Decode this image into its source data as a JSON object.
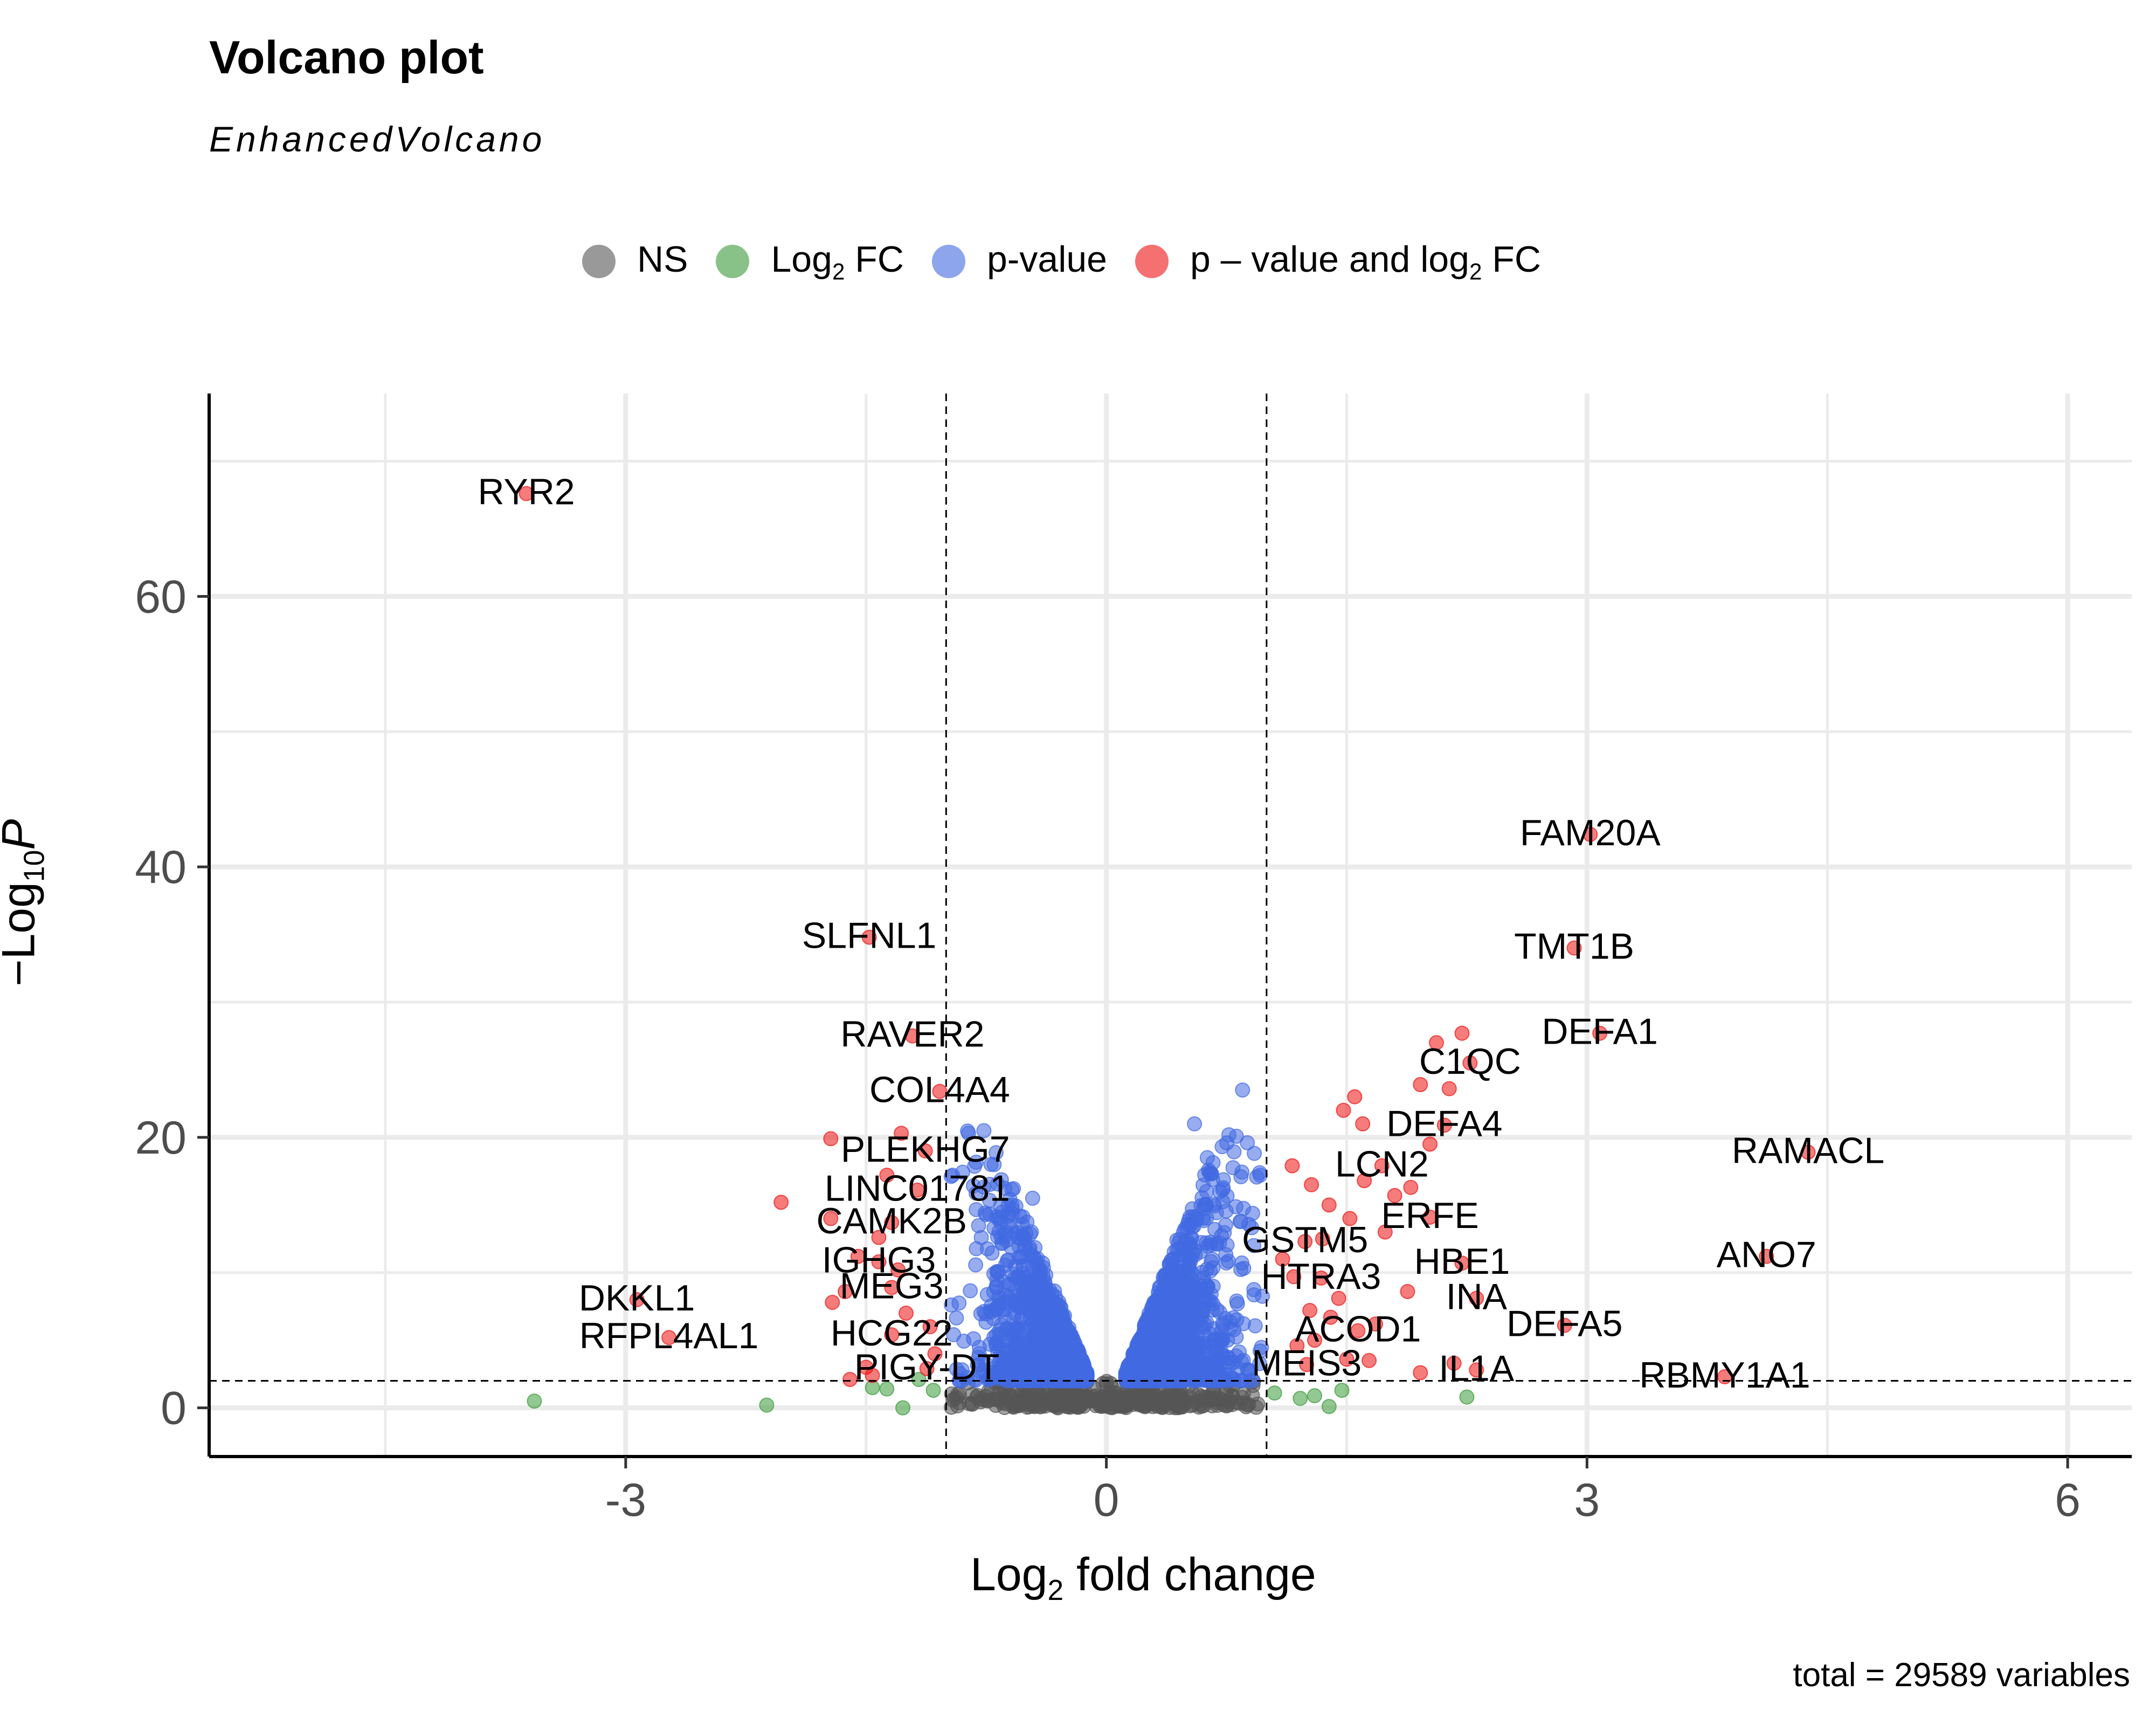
{
  "chart_data": {
    "type": "scatter",
    "title": "Volcano plot",
    "subtitle": "EnhancedVolcano",
    "caption": "total = 29589 variables",
    "xlabel": {
      "main": "Log",
      "sub": "2",
      "rest": " fold change"
    },
    "ylabel": {
      "prefix": "−Log",
      "sub": "10",
      "var": "P"
    },
    "xlim": [
      -5.6,
      6.4
    ],
    "ylim": [
      -3.6,
      75
    ],
    "xticks": [
      -3,
      0,
      3,
      6
    ],
    "yticks": [
      0,
      20,
      40,
      60
    ],
    "grid": true,
    "legend_position": "top",
    "fc_cutoff": 1,
    "p_cutoff_log10": 2,
    "legend": [
      {
        "key": "ns",
        "label": "NS",
        "sub": "",
        "rest": "",
        "color": "#555555"
      },
      {
        "key": "fc",
        "label": "Log",
        "sub": "2",
        "rest": " FC",
        "color": "#3a9a3a"
      },
      {
        "key": "p",
        "label": "p-value",
        "sub": "",
        "rest": "",
        "color": "#4169e1"
      },
      {
        "key": "both",
        "label": "p – value and log",
        "sub": "2",
        "rest": " FC",
        "color": "#ee1111"
      }
    ],
    "colors": {
      "ns": "#555555",
      "fc": "#3a9a3a",
      "p": "#4169e1",
      "both": "#ee1111"
    },
    "labeled_points": [
      {
        "gene": "RYR2",
        "x": -3.62,
        "y": 67.6
      },
      {
        "gene": "FAM20A",
        "x": 3.02,
        "y": 42.4
      },
      {
        "gene": "SLFNL1",
        "x": -1.48,
        "y": 34.8
      },
      {
        "gene": "TMT1B",
        "x": 2.92,
        "y": 34.0
      },
      {
        "gene": "RAVER2",
        "x": -1.21,
        "y": 27.5
      },
      {
        "gene": "DEFA1",
        "x": 3.08,
        "y": 27.7
      },
      {
        "gene": "C1QC",
        "x": 2.27,
        "y": 25.5
      },
      {
        "gene": "COL4A4",
        "x": -1.04,
        "y": 23.4
      },
      {
        "gene": "DEFA4",
        "x": 2.11,
        "y": 20.9
      },
      {
        "gene": "RAMACL",
        "x": 4.38,
        "y": 18.9
      },
      {
        "gene": "PLEKHG7",
        "x": -1.13,
        "y": 19.0
      },
      {
        "gene": "LCN2",
        "x": 1.72,
        "y": 17.9
      },
      {
        "gene": "LINC01781",
        "x": -1.18,
        "y": 16.1
      },
      {
        "gene": "ERFE",
        "x": 2.02,
        "y": 14.1
      },
      {
        "gene": "CAMK2B",
        "x": -1.34,
        "y": 13.7
      },
      {
        "gene": "GSTM5",
        "x": 1.24,
        "y": 12.3
      },
      {
        "gene": "ANO7",
        "x": 4.12,
        "y": 11.2
      },
      {
        "gene": "IGHG3",
        "x": -1.42,
        "y": 10.8
      },
      {
        "gene": "HBE1",
        "x": 2.22,
        "y": 10.7
      },
      {
        "gene": "HTRA3",
        "x": 1.34,
        "y": 9.6
      },
      {
        "gene": "MEG3",
        "x": -1.34,
        "y": 8.9
      },
      {
        "gene": "INA",
        "x": 2.31,
        "y": 8.1
      },
      {
        "gene": "DKKL1",
        "x": -2.93,
        "y": 8.0
      },
      {
        "gene": "DEFA5",
        "x": 2.86,
        "y": 6.1
      },
      {
        "gene": "ACOD1",
        "x": 1.57,
        "y": 5.7
      },
      {
        "gene": "RFPL4AL1",
        "x": -2.73,
        "y": 5.2
      },
      {
        "gene": "HCG22",
        "x": -1.34,
        "y": 5.4
      },
      {
        "gene": "MEIS3",
        "x": 1.25,
        "y": 3.2
      },
      {
        "gene": "IL1A",
        "x": 2.31,
        "y": 2.8
      },
      {
        "gene": "PIGY-DT",
        "x": -1.12,
        "y": 2.9
      },
      {
        "gene": "RBMY1A1",
        "x": 3.86,
        "y": 2.3
      }
    ],
    "extra_points": {
      "both": [
        [
          -2.03,
          15.2
        ],
        [
          -1.72,
          14.0
        ],
        [
          -1.72,
          19.9
        ],
        [
          -1.71,
          7.8
        ],
        [
          -1.63,
          8.6
        ],
        [
          -1.55,
          11.2
        ],
        [
          -1.42,
          12.6
        ],
        [
          -1.37,
          17.2
        ],
        [
          -1.3,
          10.2
        ],
        [
          -1.28,
          20.3
        ],
        [
          -1.5,
          3.0
        ],
        [
          -1.46,
          2.4
        ],
        [
          -1.6,
          2.1
        ],
        [
          -1.25,
          7.0
        ],
        [
          -1.07,
          4.0
        ],
        [
          -1.1,
          6.0
        ],
        [
          1.16,
          17.9
        ],
        [
          1.28,
          16.5
        ],
        [
          1.39,
          15.0
        ],
        [
          1.52,
          14.0
        ],
        [
          1.61,
          16.8
        ],
        [
          1.74,
          13.0
        ],
        [
          1.9,
          16.3
        ],
        [
          1.55,
          23.0
        ],
        [
          1.48,
          22.0
        ],
        [
          1.6,
          21.0
        ],
        [
          2.02,
          19.5
        ],
        [
          1.96,
          23.9
        ],
        [
          2.06,
          27.0
        ],
        [
          2.22,
          27.7
        ],
        [
          2.14,
          23.6
        ],
        [
          1.8,
          15.7
        ],
        [
          1.88,
          8.6
        ],
        [
          1.45,
          8.1
        ],
        [
          1.4,
          6.7
        ],
        [
          1.68,
          6.2
        ],
        [
          1.19,
          4.6
        ],
        [
          1.3,
          5.0
        ],
        [
          1.5,
          3.6
        ],
        [
          1.64,
          3.5
        ],
        [
          1.96,
          2.6
        ],
        [
          2.17,
          3.3
        ],
        [
          1.1,
          11.0
        ],
        [
          1.35,
          12.5
        ],
        [
          1.17,
          9.7
        ],
        [
          1.27,
          7.2
        ]
      ],
      "fc": [
        [
          -3.57,
          0.5
        ],
        [
          -2.12,
          0.2
        ],
        [
          -1.46,
          1.5
        ],
        [
          -1.37,
          1.4
        ],
        [
          -1.27,
          0.0
        ],
        [
          -1.17,
          2.1
        ],
        [
          -1.08,
          1.3
        ],
        [
          1.05,
          1.1
        ],
        [
          1.21,
          0.7
        ],
        [
          1.3,
          0.9
        ],
        [
          1.39,
          0.1
        ],
        [
          2.25,
          0.8
        ],
        [
          1.47,
          1.3
        ]
      ],
      "p": [
        [
          0.85,
          23.5
        ],
        [
          0.55,
          21.0
        ],
        [
          0.63,
          18.5
        ],
        [
          0.96,
          17.2
        ],
        [
          0.88,
          19.6
        ],
        [
          -0.86,
          20.3
        ],
        [
          -0.72,
          18.0
        ],
        [
          -0.46,
          15.5
        ],
        [
          -0.96,
          17.2
        ],
        [
          0.44,
          12.4
        ],
        [
          -0.55,
          9.6
        ],
        [
          0.92,
          12.0
        ]
      ]
    },
    "cloud": {
      "n_pvalue": 2600,
      "n_ns": 420,
      "seed": 7
    }
  }
}
